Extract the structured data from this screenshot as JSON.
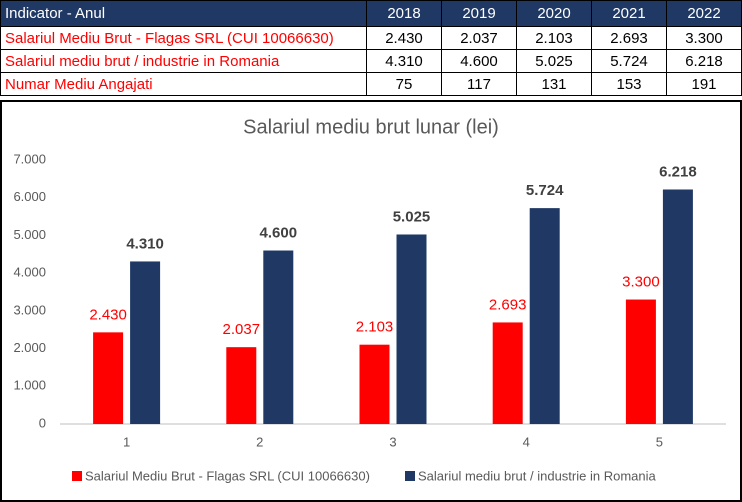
{
  "table": {
    "header": [
      "Indicator - Anul",
      "2018",
      "2019",
      "2020",
      "2021",
      "2022"
    ],
    "rows": [
      [
        "Salariul Mediu Brut - Flagas SRL (CUI 10066630)",
        "2.430",
        "2.037",
        "2.103",
        "2.693",
        "3.300"
      ],
      [
        "Salariul mediu brut / industrie in Romania",
        "4.310",
        "4.600",
        "5.025",
        "5.724",
        "6.218"
      ],
      [
        "Numar Mediu Angajati",
        "75",
        "117",
        "131",
        "153",
        "191"
      ]
    ]
  },
  "chart_data": {
    "type": "bar",
    "title": "Salariul mediu brut lunar (lei)",
    "categories": [
      "1",
      "2",
      "3",
      "4",
      "5"
    ],
    "series": [
      {
        "name": "Salariul Mediu Brut - Flagas SRL (CUI 10066630)",
        "color": "#ff0000",
        "values": [
          2430,
          2037,
          2103,
          2693,
          3300
        ],
        "value_labels": [
          "2.430",
          "2.037",
          "2.103",
          "2.693",
          "3.300"
        ]
      },
      {
        "name": "Salariul mediu brut / industrie in Romania",
        "color": "#1f3864",
        "values": [
          4310,
          4600,
          5025,
          5724,
          6218
        ],
        "value_labels": [
          "4.310",
          "4.600",
          "5.025",
          "5.724",
          "6.218"
        ]
      }
    ],
    "ylim": [
      0,
      7000
    ],
    "yticks": [
      0,
      {
        "value": 1000,
        "label": "1.000"
      },
      {
        "value": 2000,
        "label": "2.000"
      },
      {
        "value": 3000,
        "label": "3.000"
      },
      {
        "value": 4000,
        "label": "4.000"
      },
      {
        "value": 5000,
        "label": "5.000"
      },
      {
        "value": 6000,
        "label": "6.000"
      },
      {
        "value": 7000,
        "label": "7.000"
      }
    ],
    "grid": false,
    "legend": "bottom"
  }
}
